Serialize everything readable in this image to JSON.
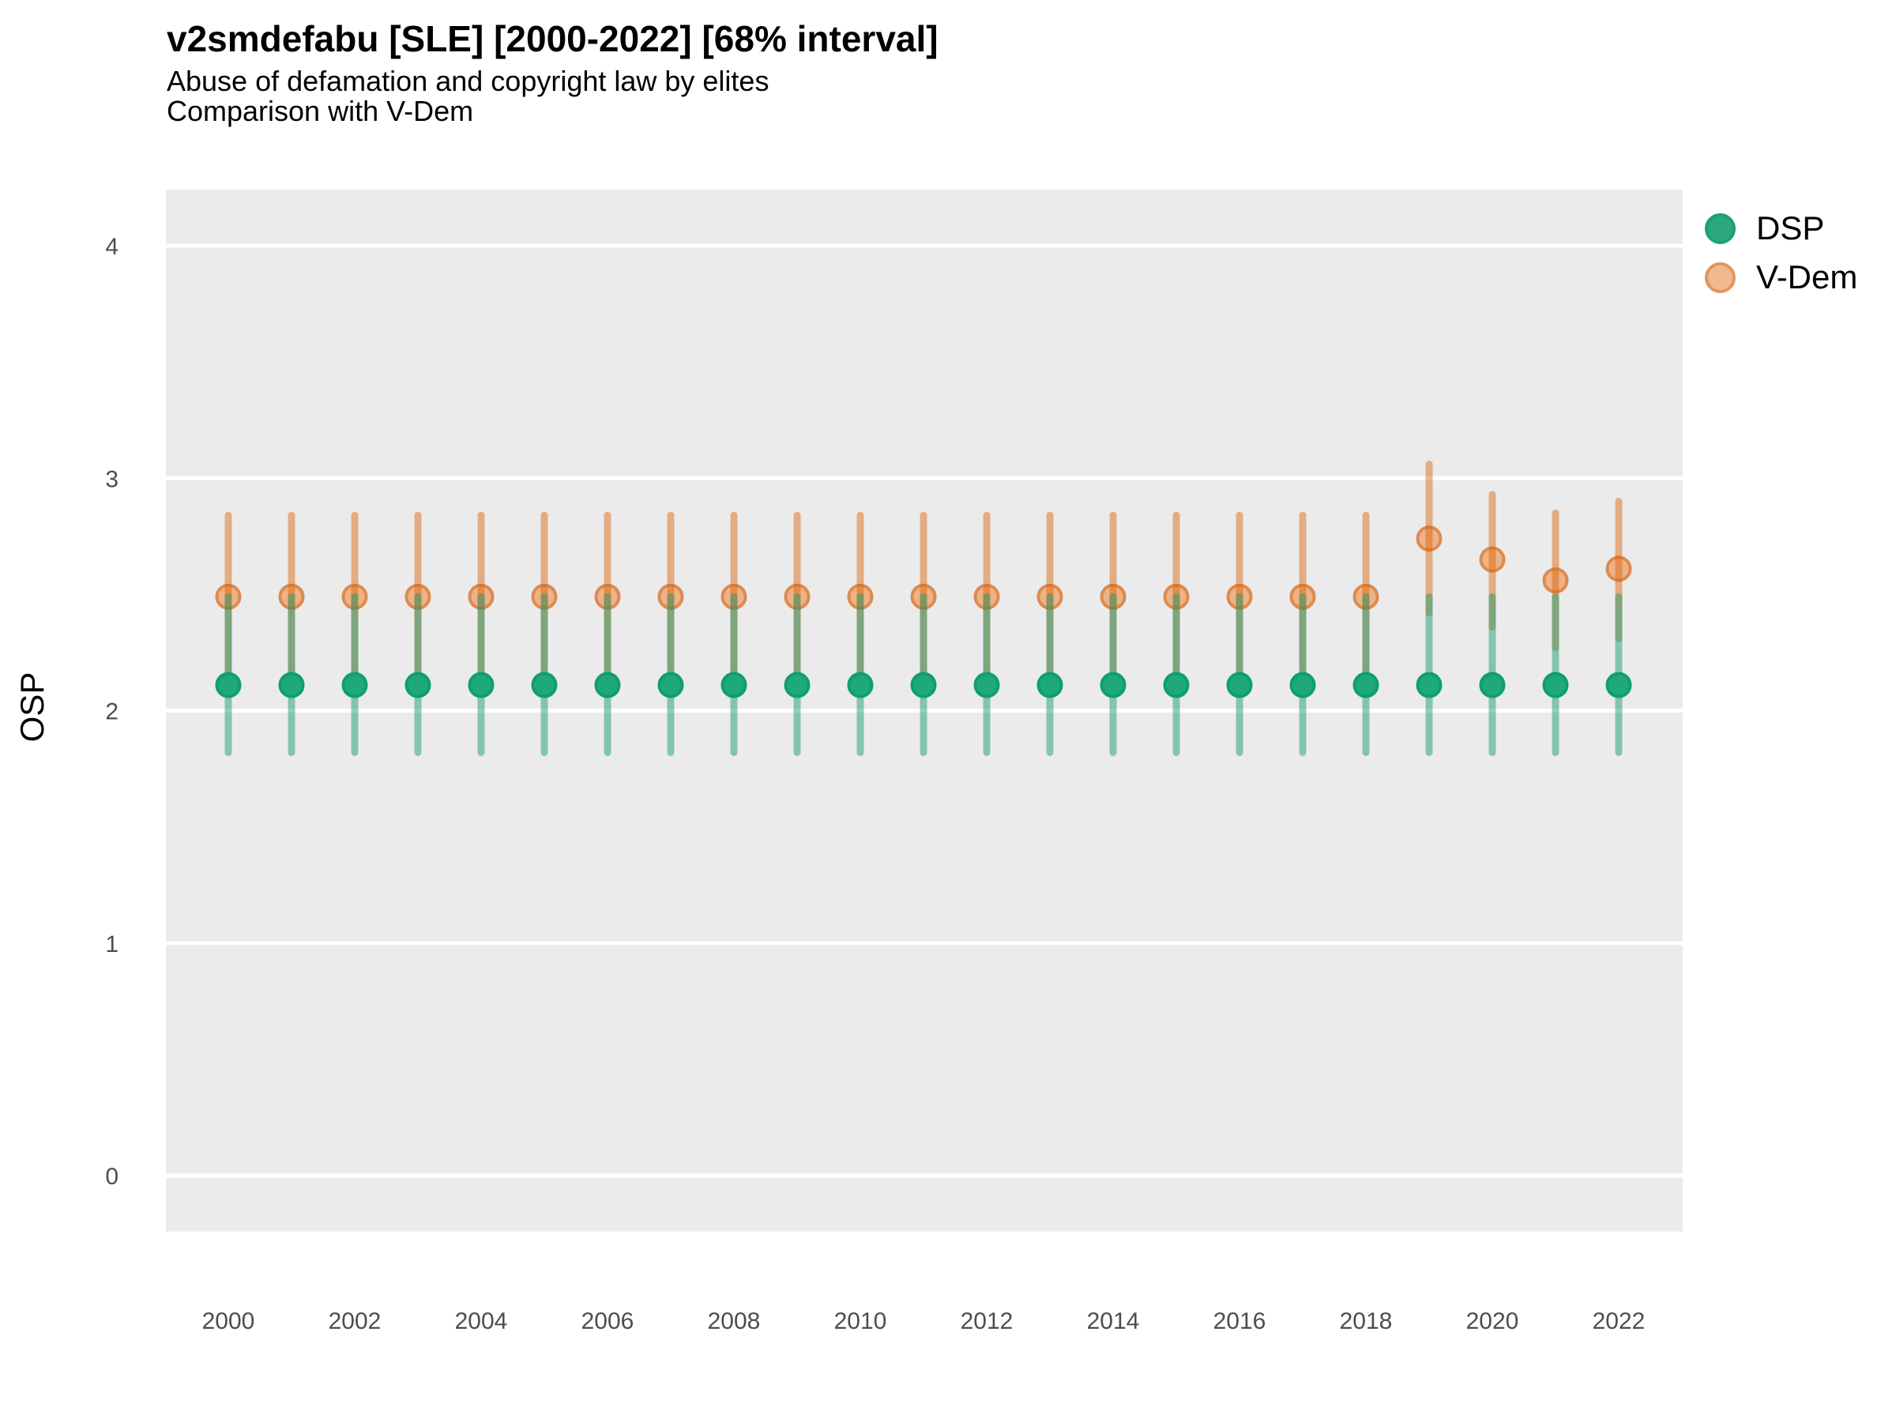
{
  "header": {
    "title": "v2smdefabu [SLE] [2000-2022] [68% interval]",
    "subtitle": "Abuse of defamation and copyright law by elites",
    "note": "Comparison with V-Dem"
  },
  "legend": {
    "position": "right",
    "items": [
      {
        "label": "DSP",
        "fill": "#2DA87E",
        "stroke": "#19A173"
      },
      {
        "label": "V-Dem",
        "fill": "#F0B98E",
        "stroke": "#E0965D"
      }
    ]
  },
  "colors": {
    "panel_bg": "#EBEBEB",
    "grid": "#FFFFFF",
    "axis_text": "#4D4D4D",
    "axis_title": "#000000",
    "dsp_point_fill": "#20A87D",
    "dsp_point_stroke": "#0E9E72",
    "dsp_bar": "rgba(27,158,119,0.5)",
    "vdem_point_fill": "#EDB286",
    "vdem_point_stroke": "#DC8B51",
    "vdem_bar": "rgba(217,95,2,0.45)"
  },
  "chart_data": {
    "type": "scatter",
    "title": "v2smdefabu [SLE] [2000-2022] [68% interval]",
    "subtitle": "Abuse of defamation and copyright law by elites",
    "note": "Comparison with V-Dem",
    "interval": "68%",
    "xlabel": "",
    "ylabel": "OSP",
    "x": [
      2000,
      2001,
      2002,
      2003,
      2004,
      2005,
      2006,
      2007,
      2008,
      2009,
      2010,
      2011,
      2012,
      2013,
      2014,
      2015,
      2016,
      2017,
      2018,
      2019,
      2020,
      2021,
      2022
    ],
    "x_tick_labels": [
      "2000",
      "2002",
      "2004",
      "2006",
      "2008",
      "2010",
      "2012",
      "2014",
      "2016",
      "2018",
      "2020",
      "2022"
    ],
    "y_ticks": [
      0,
      1,
      2,
      3,
      4
    ],
    "ylim": [
      -0.24,
      4.24
    ],
    "grid": "major-only",
    "legend_position": "right",
    "series": [
      {
        "name": "DSP",
        "values": [
          2.11,
          2.11,
          2.11,
          2.11,
          2.11,
          2.11,
          2.11,
          2.11,
          2.11,
          2.11,
          2.11,
          2.11,
          2.11,
          2.11,
          2.11,
          2.11,
          2.11,
          2.11,
          2.11,
          2.11,
          2.11,
          2.11,
          2.11
        ],
        "lower": [
          1.82,
          1.82,
          1.82,
          1.82,
          1.82,
          1.82,
          1.82,
          1.82,
          1.82,
          1.82,
          1.82,
          1.82,
          1.82,
          1.82,
          1.82,
          1.82,
          1.82,
          1.82,
          1.82,
          1.82,
          1.82,
          1.82,
          1.82
        ],
        "upper": [
          2.49,
          2.49,
          2.49,
          2.49,
          2.49,
          2.49,
          2.49,
          2.49,
          2.49,
          2.49,
          2.49,
          2.49,
          2.49,
          2.49,
          2.49,
          2.49,
          2.49,
          2.49,
          2.49,
          2.49,
          2.49,
          2.49,
          2.49
        ]
      },
      {
        "name": "V-Dem",
        "values": [
          2.49,
          2.49,
          2.49,
          2.49,
          2.49,
          2.49,
          2.49,
          2.49,
          2.49,
          2.49,
          2.49,
          2.49,
          2.49,
          2.49,
          2.49,
          2.49,
          2.49,
          2.49,
          2.49,
          2.74,
          2.65,
          2.56,
          2.61
        ],
        "lower": [
          2.14,
          2.14,
          2.14,
          2.14,
          2.14,
          2.14,
          2.14,
          2.14,
          2.14,
          2.14,
          2.14,
          2.14,
          2.14,
          2.14,
          2.14,
          2.14,
          2.14,
          2.14,
          2.14,
          2.42,
          2.36,
          2.27,
          2.31
        ],
        "upper": [
          2.84,
          2.84,
          2.84,
          2.84,
          2.84,
          2.84,
          2.84,
          2.84,
          2.84,
          2.84,
          2.84,
          2.84,
          2.84,
          2.84,
          2.84,
          2.84,
          2.84,
          2.84,
          2.84,
          3.06,
          2.93,
          2.85,
          2.9
        ]
      }
    ]
  }
}
